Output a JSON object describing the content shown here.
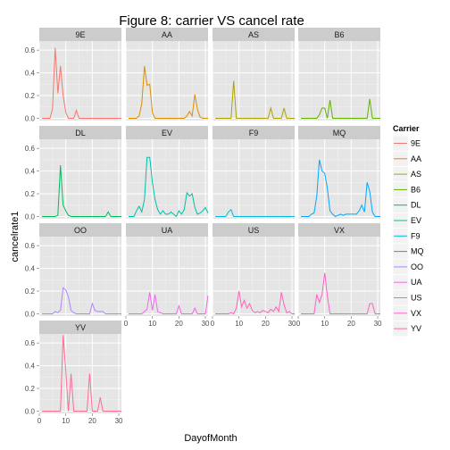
{
  "chart_data": {
    "type": "line",
    "title": "Figure 8: carrier VS cancel rate",
    "xlabel": "DayofMonth",
    "ylabel": "cancelrate1",
    "xlim": [
      0,
      31
    ],
    "ylim": [
      -0.02,
      0.68
    ],
    "x_ticks": [
      0,
      10,
      20,
      30
    ],
    "y_ticks": [
      0.0,
      0.2,
      0.4,
      0.6
    ],
    "x_tick_labels": [
      "0",
      "10",
      "20",
      "30"
    ],
    "y_tick_labels": [
      "0.0",
      "0.2",
      "0.4",
      "0.6"
    ],
    "grid": true,
    "legend_title": "Carrier",
    "legend_position": "right",
    "panel_layout": "4x4 facet grid",
    "x": [
      1,
      2,
      3,
      4,
      5,
      6,
      7,
      8,
      9,
      10,
      11,
      12,
      13,
      14,
      15,
      16,
      17,
      18,
      19,
      20,
      21,
      22,
      23,
      24,
      25,
      26,
      27,
      28,
      29,
      30,
      31
    ],
    "series": [
      {
        "name": "9E",
        "color": "#F8766D",
        "values": [
          0,
          0,
          0,
          0,
          0.08,
          0.62,
          0.22,
          0.46,
          0.2,
          0.05,
          0,
          0,
          0,
          0.07,
          0,
          0,
          0,
          0,
          0,
          0,
          0,
          0,
          0,
          0,
          0,
          0,
          0,
          0,
          0,
          0,
          0
        ]
      },
      {
        "name": "AA",
        "color": "#DB8E00",
        "values": [
          0,
          0,
          0,
          0,
          0.02,
          0.13,
          0.46,
          0.29,
          0.3,
          0.05,
          0,
          0,
          0,
          0,
          0,
          0,
          0,
          0,
          0,
          0,
          0,
          0,
          0.02,
          0.06,
          0.02,
          0.21,
          0.08,
          0.01,
          0,
          0,
          0
        ]
      },
      {
        "name": "AS",
        "color": "#AEA200",
        "values": [
          0,
          0,
          0,
          0,
          0,
          0,
          0,
          0.33,
          0,
          0,
          0,
          0,
          0,
          0,
          0,
          0,
          0,
          0,
          0,
          0,
          0,
          0.09,
          0,
          0,
          0,
          0,
          0.09,
          0,
          0,
          0,
          0
        ]
      },
      {
        "name": "B6",
        "color": "#64B200",
        "values": [
          0,
          0,
          0,
          0,
          0,
          0,
          0,
          0.03,
          0.09,
          0.09,
          0,
          0.16,
          0,
          0,
          0,
          0,
          0,
          0,
          0,
          0,
          0,
          0,
          0,
          0,
          0,
          0,
          0.17,
          0,
          0,
          0,
          0
        ]
      },
      {
        "name": "DL",
        "color": "#00BD5C",
        "values": [
          0,
          0,
          0,
          0,
          0,
          0,
          0.01,
          0.45,
          0.1,
          0.05,
          0.01,
          0,
          0,
          0,
          0,
          0,
          0,
          0,
          0,
          0,
          0,
          0,
          0,
          0,
          0,
          0.04,
          0,
          0,
          0,
          0,
          0
        ]
      },
      {
        "name": "EV",
        "color": "#00C1A7",
        "values": [
          0,
          0,
          0,
          0.05,
          0.09,
          0.04,
          0.15,
          0.52,
          0.52,
          0.3,
          0.15,
          0.06,
          0.02,
          0.05,
          0.02,
          0.02,
          0.04,
          0.02,
          0,
          0.05,
          0.02,
          0.06,
          0.21,
          0.18,
          0.2,
          0.08,
          0.02,
          0.03,
          0.05,
          0.08,
          0.03
        ]
      },
      {
        "name": "F9",
        "color": "#00BADE",
        "values": [
          0,
          0,
          0,
          0,
          0,
          0.04,
          0.06,
          0,
          0,
          0,
          0,
          0,
          0,
          0,
          0,
          0,
          0,
          0,
          0,
          0,
          0,
          0,
          0,
          0,
          0,
          0,
          0,
          0,
          0,
          0,
          0
        ]
      },
      {
        "name": "MQ",
        "color": "#00A6FF",
        "values": [
          0,
          0,
          0,
          0,
          0.02,
          0.03,
          0.18,
          0.5,
          0.4,
          0.38,
          0.25,
          0.05,
          0.02,
          0,
          0.01,
          0.02,
          0.01,
          0.02,
          0.02,
          0.02,
          0.02,
          0.02,
          0.05,
          0.1,
          0.04,
          0.3,
          0.22,
          0.04,
          0,
          0,
          0
        ]
      },
      {
        "name": "OO",
        "color": "#B385FF",
        "values": [
          0,
          0,
          0,
          0,
          0,
          0.02,
          0.01,
          0.03,
          0.23,
          0.21,
          0.15,
          0.03,
          0.01,
          0,
          0,
          0,
          0,
          0,
          0,
          0.09,
          0.03,
          0.02,
          0.02,
          0.02,
          0,
          0,
          0,
          0,
          0,
          0,
          0
        ]
      },
      {
        "name": "UA",
        "color": "#EF67EB",
        "values": [
          0,
          0,
          0,
          0,
          0,
          0,
          0.02,
          0.04,
          0.19,
          0.03,
          0.17,
          0.02,
          0.01,
          0,
          0,
          0,
          0,
          0,
          0,
          0.07,
          0,
          0,
          0,
          0,
          0,
          0.05,
          0,
          0,
          0,
          0,
          0.16
        ]
      },
      {
        "name": "US",
        "color": "#FF63B6",
        "values": [
          0,
          0,
          0,
          0,
          0,
          0,
          0.01,
          0,
          0.05,
          0.2,
          0.06,
          0.12,
          0.05,
          0.09,
          0.03,
          0.01,
          0.02,
          0.01,
          0.03,
          0.02,
          0.01,
          0.04,
          0.02,
          0.06,
          0.02,
          0.19,
          0.08,
          0.01,
          0.02,
          0,
          0
        ]
      },
      {
        "name": "VX",
        "color": "#FF61C9",
        "values": [
          0,
          0,
          0,
          0,
          0,
          0,
          0.17,
          0.1,
          0.17,
          0.36,
          0.16,
          0,
          0,
          0,
          0,
          0,
          0,
          0,
          0,
          0,
          0,
          0,
          0,
          0,
          0,
          0,
          0.09,
          0.09,
          0,
          0,
          0
        ]
      },
      {
        "name": "YV",
        "color": "#FF6C91",
        "values": [
          0,
          0,
          0,
          0,
          0,
          0,
          0,
          0,
          0.67,
          0.35,
          0,
          0.33,
          0,
          0,
          0,
          0,
          0,
          0,
          0.33,
          0,
          0,
          0,
          0.12,
          0,
          0,
          0,
          0,
          0,
          0,
          0,
          0
        ]
      }
    ]
  }
}
